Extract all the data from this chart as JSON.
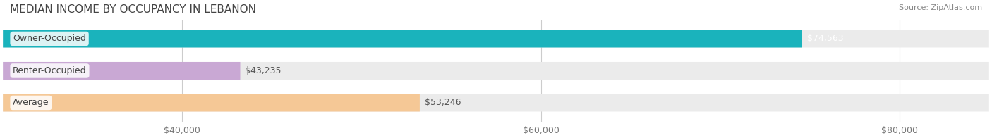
{
  "title": "MEDIAN INCOME BY OCCUPANCY IN LEBANON",
  "source": "Source: ZipAtlas.com",
  "categories": [
    "Owner-Occupied",
    "Renter-Occupied",
    "Average"
  ],
  "values": [
    74563,
    43235,
    53246
  ],
  "bar_colors": [
    "#1ab3bc",
    "#c9a8d4",
    "#f5c896"
  ],
  "bar_edge_colors": [
    "#1ab3bc",
    "#c9a8d4",
    "#f5c896"
  ],
  "label_colors": [
    "#1ab3bc",
    "#c9a8d4",
    "#f5c896"
  ],
  "value_labels": [
    "$74,563",
    "$43,235",
    "$53,246"
  ],
  "bg_bar_color": "#f0f0f0",
  "xlim_min": 30000,
  "xlim_max": 85000,
  "xticks": [
    40000,
    60000,
    80000
  ],
  "xtick_labels": [
    "$40,000",
    "$60,000",
    "$80,000"
  ],
  "bar_height": 0.55,
  "title_fontsize": 11,
  "source_fontsize": 8,
  "label_fontsize": 9,
  "value_fontsize": 9,
  "tick_fontsize": 9,
  "background_color": "#ffffff"
}
